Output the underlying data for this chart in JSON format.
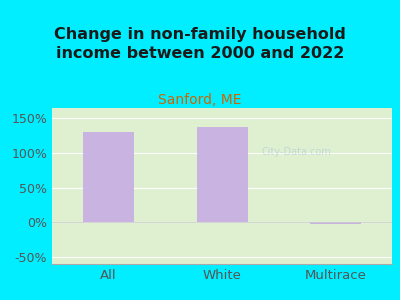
{
  "title": "Change in non-family household\nincome between 2000 and 2022",
  "subtitle": "Sanford, ME",
  "categories": [
    "All",
    "White",
    "Multirace"
  ],
  "values": [
    130,
    137,
    -3
  ],
  "bar_color": "#c9b3e0",
  "title_color": "#1a1a1a",
  "subtitle_color": "#cc6600",
  "tick_label_color": "#555555",
  "background_color": "#00eeff",
  "plot_bg_color": "#dff0d0",
  "ylim": [
    -60,
    165
  ],
  "yticks": [
    -50,
    0,
    50,
    100,
    150
  ],
  "ytick_labels": [
    "-50%",
    "0%",
    "50%",
    "100%",
    "150%"
  ],
  "title_fontsize": 11.5,
  "subtitle_fontsize": 10,
  "tick_fontsize": 9,
  "xlabel_fontsize": 9.5,
  "watermark": "City-Data.com"
}
